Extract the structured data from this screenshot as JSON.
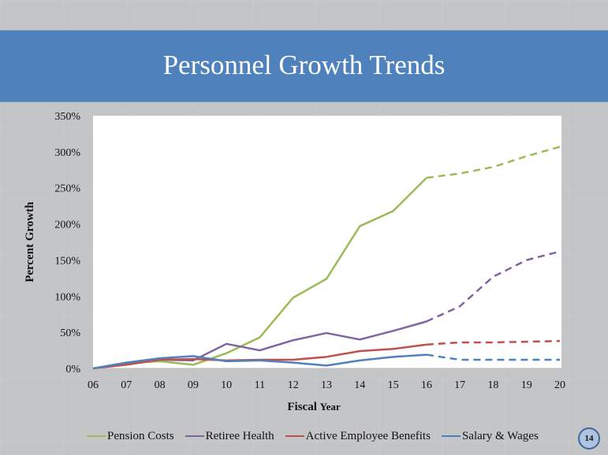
{
  "slide": {
    "title": "Personnel Growth Trends",
    "page_number": "14"
  },
  "chart_data": {
    "type": "line",
    "title": "",
    "xlabel_bold": "Fiscal ",
    "xlabel_rest": "Year",
    "ylabel": "Percent Growth",
    "x": [
      "06",
      "07",
      "08",
      "09",
      "10",
      "11",
      "12",
      "13",
      "14",
      "15",
      "16",
      "17",
      "18",
      "19",
      "20"
    ],
    "ylim": [
      0,
      350
    ],
    "yticks": [
      0,
      50,
      100,
      150,
      200,
      250,
      300,
      350
    ],
    "ytick_labels": [
      "0%",
      "50%",
      "100%",
      "150%",
      "200%",
      "250%",
      "300%",
      "350%"
    ],
    "projection_start_index": 10,
    "legend_position": "bottom",
    "grid": false,
    "series": [
      {
        "name": "Pension Costs",
        "color": "#9bbb59",
        "values": [
          0,
          7,
          10,
          5,
          21,
          43,
          98,
          124,
          197,
          218,
          264,
          270,
          279,
          294,
          307
        ]
      },
      {
        "name": "Retiree Health",
        "color": "#8064a2",
        "values": [
          0,
          7,
          12,
          11,
          34,
          25,
          39,
          49,
          40,
          52,
          65,
          86,
          127,
          150,
          162
        ]
      },
      {
        "name": "Active Employee Benefits",
        "color": "#c0504d",
        "values": [
          0,
          5,
          12,
          13,
          11,
          12,
          12,
          16,
          24,
          27,
          33,
          36,
          36,
          37,
          38
        ]
      },
      {
        "name": "Salary & Wages",
        "color": "#4f81bd",
        "values": [
          0,
          8,
          14,
          17,
          10,
          11,
          8,
          4,
          11,
          16,
          19,
          12,
          12,
          12,
          12
        ]
      }
    ]
  }
}
